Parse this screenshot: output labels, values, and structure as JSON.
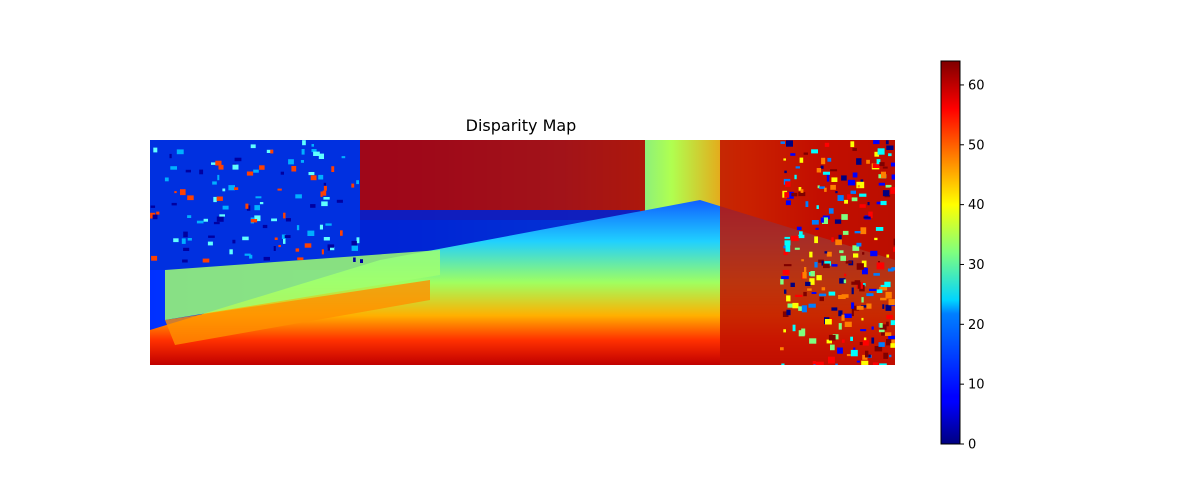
{
  "chart_data": {
    "type": "heatmap",
    "title": "Disparity Map",
    "colormap": "jet",
    "axes_visible": false,
    "image_description_hint": "stereo disparity map of a road scene; far field low disparity (blue), near field high disparity (red)",
    "colorbar": {
      "range": [
        0,
        64
      ],
      "ticks": [
        0,
        10,
        20,
        30,
        40,
        50,
        60
      ],
      "tick_labels": [
        "0",
        "10",
        "20",
        "30",
        "40",
        "50",
        "60"
      ],
      "placement": "right"
    },
    "colors": {
      "jet_stops": [
        "#00007f",
        "#0000ff",
        "#007fff",
        "#00ffff",
        "#7fff7f",
        "#ffff00",
        "#ff7f00",
        "#ff0000",
        "#7f0000"
      ]
    }
  }
}
